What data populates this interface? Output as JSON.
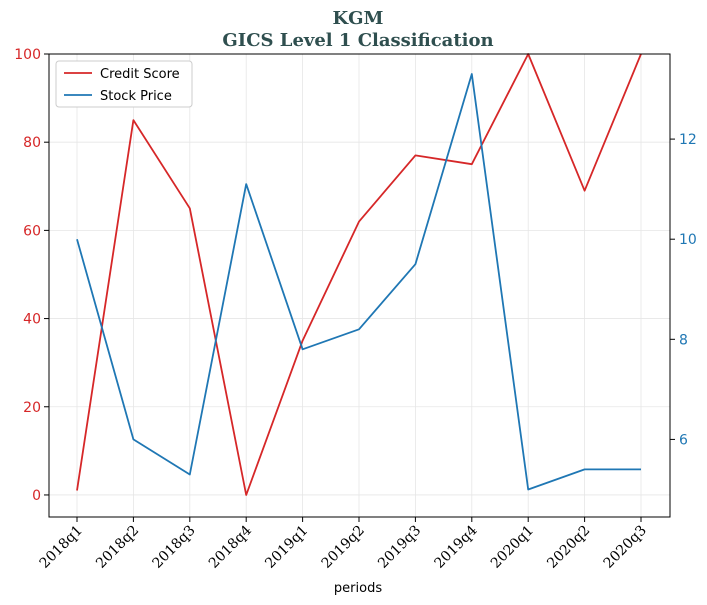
{
  "chart_data": {
    "type": "line",
    "title": "KGM",
    "subtitle": "GICS Level 1 Classification",
    "xlabel": "periods",
    "categories": [
      "2018q1",
      "2018q2",
      "2018q3",
      "2018q4",
      "2019q1",
      "2019q2",
      "2019q3",
      "2019q4",
      "2020q1",
      "2020q2",
      "2020q3"
    ],
    "series": [
      {
        "name": "Credit Score",
        "axis": "left",
        "color": "#d62728",
        "values": [
          1,
          85,
          65,
          0,
          35,
          62,
          77,
          75,
          100,
          69,
          100
        ]
      },
      {
        "name": "Stock Price",
        "axis": "right",
        "color": "#1f77b4",
        "values": [
          10.0,
          6.0,
          5.3,
          11.1,
          7.8,
          8.2,
          9.5,
          13.3,
          5.0,
          5.4,
          5.4
        ]
      }
    ],
    "y_left": {
      "ylim": [
        -5,
        100
      ],
      "ticks": [
        0,
        20,
        40,
        60,
        80,
        100
      ],
      "color": "#d62728"
    },
    "y_right": {
      "ylim": [
        4.45,
        13.7
      ],
      "ticks": [
        6,
        8,
        10,
        12
      ],
      "color": "#1f77b4"
    },
    "grid": true,
    "legend": "top-left"
  }
}
